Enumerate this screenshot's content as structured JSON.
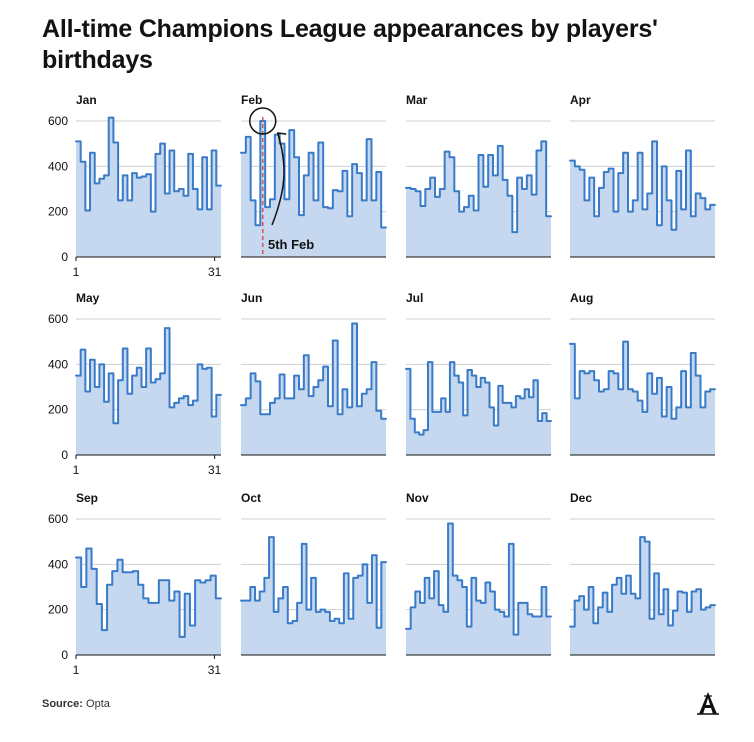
{
  "title": "All-time Champions League appearances by players' birthdays",
  "source_label": "Source:",
  "source_value": "Opta",
  "logo_letter": "A",
  "chart_data": {
    "type": "area",
    "subtype": "small-multiples-step",
    "ylim": [
      0,
      600
    ],
    "yticks": [
      0,
      200,
      400,
      600
    ],
    "x_tick_labels": [
      "1",
      "31"
    ],
    "grid": true,
    "colors": {
      "line": "#3a7bc8",
      "fill": "#c6d8ef",
      "highlight": "#d9534f"
    },
    "annotation": {
      "month": "Feb",
      "day": 5,
      "label": "5th Feb"
    },
    "months": [
      {
        "name": "Jan",
        "values": [
          510,
          420,
          205,
          460,
          325,
          345,
          360,
          615,
          505,
          250,
          360,
          250,
          370,
          350,
          355,
          365,
          200,
          455,
          500,
          280,
          470,
          290,
          300,
          270,
          455,
          300,
          210,
          440,
          210,
          470,
          315
        ]
      },
      {
        "name": "Feb",
        "values": [
          460,
          530,
          250,
          140,
          600,
          220,
          255,
          540,
          500,
          255,
          560,
          440,
          185,
          360,
          460,
          250,
          505,
          220,
          215,
          295,
          290,
          380,
          180,
          410,
          370,
          250,
          520,
          250,
          375,
          130
        ]
      },
      {
        "name": "Mar",
        "values": [
          305,
          300,
          290,
          225,
          300,
          350,
          265,
          300,
          465,
          440,
          290,
          200,
          220,
          270,
          205,
          450,
          310,
          450,
          360,
          490,
          340,
          270,
          110,
          350,
          300,
          360,
          275,
          470,
          510,
          180
        ]
      },
      {
        "name": "Apr",
        "values": [
          425,
          400,
          385,
          250,
          350,
          180,
          305,
          375,
          390,
          200,
          370,
          460,
          200,
          250,
          460,
          210,
          280,
          510,
          140,
          400,
          250,
          120,
          380,
          210,
          470,
          180,
          280,
          260,
          210,
          230
        ]
      },
      {
        "name": "May",
        "values": [
          350,
          465,
          280,
          420,
          300,
          400,
          235,
          360,
          140,
          330,
          470,
          270,
          350,
          385,
          300,
          470,
          320,
          335,
          360,
          560,
          210,
          230,
          250,
          260,
          220,
          240,
          400,
          380,
          385,
          170,
          265
        ]
      },
      {
        "name": "Jun",
        "values": [
          220,
          250,
          360,
          325,
          180,
          180,
          230,
          250,
          355,
          250,
          250,
          350,
          290,
          440,
          260,
          300,
          330,
          390,
          215,
          505,
          180,
          290,
          210,
          580,
          215,
          270,
          290,
          410,
          195,
          160
        ]
      },
      {
        "name": "Jul",
        "values": [
          380,
          160,
          100,
          90,
          110,
          410,
          190,
          190,
          250,
          190,
          410,
          350,
          320,
          175,
          375,
          350,
          300,
          340,
          320,
          210,
          130,
          305,
          230,
          230,
          210,
          260,
          250,
          290,
          255,
          330,
          150,
          185,
          150
        ]
      },
      {
        "name": "Aug",
        "values": [
          490,
          250,
          370,
          360,
          370,
          330,
          280,
          290,
          370,
          360,
          290,
          500,
          290,
          280,
          240,
          190,
          360,
          270,
          340,
          170,
          300,
          160,
          210,
          370,
          210,
          450,
          350,
          210,
          280,
          290
        ]
      },
      {
        "name": "Sep",
        "values": [
          430,
          300,
          470,
          380,
          225,
          110,
          310,
          370,
          420,
          365,
          365,
          370,
          310,
          250,
          230,
          230,
          330,
          330,
          240,
          280,
          80,
          270,
          130,
          330,
          320,
          330,
          350,
          250
        ]
      },
      {
        "name": "Oct",
        "values": [
          240,
          240,
          300,
          240,
          280,
          340,
          520,
          190,
          250,
          300,
          140,
          150,
          230,
          490,
          200,
          340,
          190,
          200,
          190,
          150,
          160,
          140,
          360,
          160,
          340,
          350,
          400,
          230,
          440,
          120,
          410
        ]
      },
      {
        "name": "Nov",
        "values": [
          115,
          210,
          280,
          230,
          340,
          250,
          370,
          220,
          190,
          580,
          350,
          330,
          300,
          125,
          340,
          240,
          230,
          320,
          280,
          200,
          190,
          170,
          490,
          90,
          230,
          230,
          180,
          170,
          170,
          300,
          170
        ]
      },
      {
        "name": "Dec",
        "values": [
          125,
          240,
          260,
          200,
          300,
          140,
          210,
          275,
          190,
          310,
          340,
          270,
          350,
          270,
          250,
          520,
          500,
          160,
          360,
          180,
          290,
          130,
          195,
          280,
          275,
          190,
          280,
          290,
          200,
          210,
          220
        ]
      }
    ]
  }
}
